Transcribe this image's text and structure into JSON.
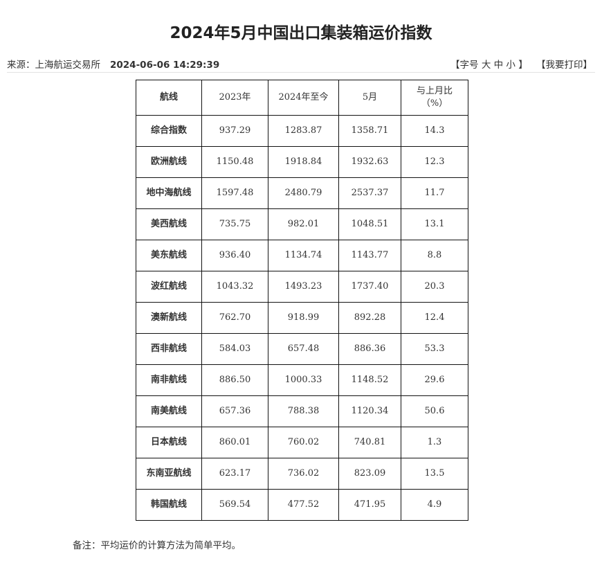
{
  "title": "2024年5月中国出口集装箱运价指数",
  "meta": {
    "source": "来源：上海航运交易所",
    "date": "2024-06-06 14:29:39"
  },
  "tools": {
    "font_size": "【字号 大 中 小 】",
    "print": "【我要打印】"
  },
  "table": {
    "headers": [
      "航线",
      "2023年",
      "2024年至今",
      "5月",
      "与上月比\n（%）"
    ],
    "rows": [
      [
        "综合指数",
        "937.29",
        "1283.87",
        "1358.71",
        "14.3"
      ],
      [
        "欧洲航线",
        "1150.48",
        "1918.84",
        "1932.63",
        "12.3"
      ],
      [
        "地中海航线",
        "1597.48",
        "2480.79",
        "2537.37",
        "11.7"
      ],
      [
        "美西航线",
        "735.75",
        "982.01",
        "1048.51",
        "13.1"
      ],
      [
        "美东航线",
        "936.40",
        "1134.74",
        "1143.77",
        "8.8"
      ],
      [
        "波红航线",
        "1043.32",
        "1493.23",
        "1737.40",
        "20.3"
      ],
      [
        "澳新航线",
        "762.70",
        "918.99",
        "892.28",
        "12.4"
      ],
      [
        "西非航线",
        "584.03",
        "657.48",
        "886.36",
        "53.3"
      ],
      [
        "南非航线",
        "886.50",
        "1000.33",
        "1148.52",
        "29.6"
      ],
      [
        "南美航线",
        "657.36",
        "788.38",
        "1120.34",
        "50.6"
      ],
      [
        "日本航线",
        "860.01",
        "760.02",
        "740.81",
        "1.3"
      ],
      [
        "东南亚航线",
        "623.17",
        "736.02",
        "823.09",
        "13.5"
      ],
      [
        "韩国航线",
        "569.54",
        "477.52",
        "471.95",
        "4.9"
      ]
    ]
  },
  "note": "备注：平均运价的计算方法为简单平均。"
}
